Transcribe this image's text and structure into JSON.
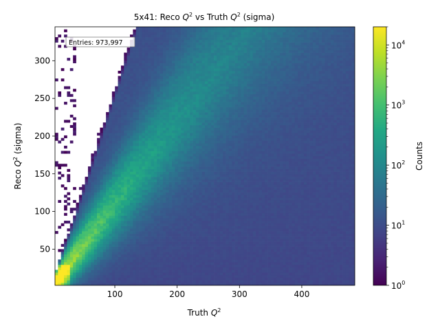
{
  "chart_data": {
    "type": "heatmap",
    "title_prefix": "5x41: Reco ",
    "title_mid": " vs Truth ",
    "title_suffix": " (sigma)",
    "xlabel_prefix": "Truth ",
    "ylabel_prefix": "Reco ",
    "ylabel_suffix": " (sigma)",
    "q_symbol": "Q",
    "q_power": "2",
    "colorbar_label": "Counts",
    "colorbar_base": "10",
    "colorbar_exponents": [
      "0",
      "1",
      "2",
      "3",
      "4"
    ],
    "entries_text": "Entries: 973,997",
    "xlim": [
      4,
      485
    ],
    "ylim": [
      2,
      345
    ],
    "x_ticks": [
      100,
      200,
      300,
      400
    ],
    "y_ticks": [
      50,
      100,
      150,
      200,
      250,
      300
    ],
    "color_scale": "log",
    "color_range": [
      1,
      20000
    ],
    "colormap": "viridis",
    "bins": {
      "nx": 100,
      "ny": 100
    }
  }
}
